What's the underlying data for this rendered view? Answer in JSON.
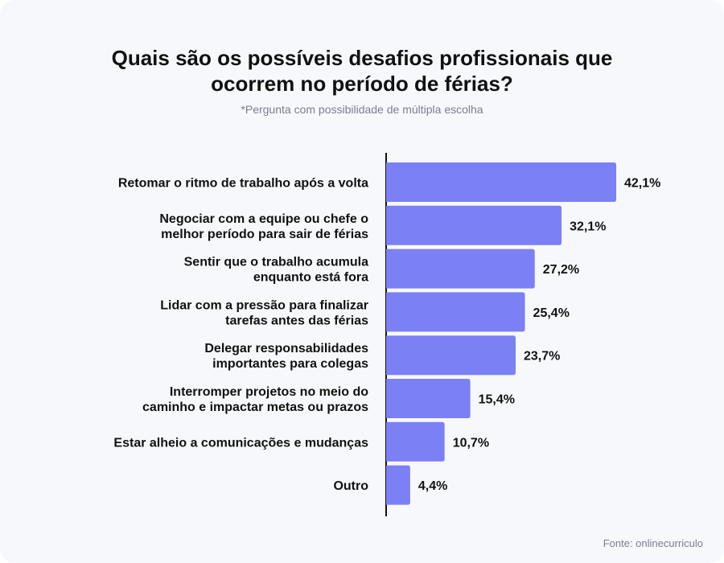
{
  "title_lines": [
    "Quais são os possíveis desafios profissionais que",
    "ocorrem no período de férias?"
  ],
  "subtitle": "*Pergunta com possibilidade de múltipla escolha",
  "source": "Fonte: onlinecurriculo",
  "colors": {
    "bar": "#7b80f5",
    "axis": "#111111",
    "background": "#f7f8fc"
  },
  "chart_data": {
    "type": "bar",
    "orientation": "horizontal",
    "categories": [
      [
        "Retomar o ritmo de trabalho após a volta"
      ],
      [
        "Negociar com a equipe ou chefe o",
        "melhor período para sair de férias"
      ],
      [
        "Sentir que o trabalho acumula",
        "enquanto está fora"
      ],
      [
        "Lidar com a pressão para finalizar",
        "tarefas antes das férias"
      ],
      [
        "Delegar responsabilidades",
        "importantes para colegas"
      ],
      [
        "Interromper projetos no meio do",
        "caminho e impactar metas ou prazos"
      ],
      [
        "Estar alheio a comunicações e mudanças"
      ],
      [
        "Outro"
      ]
    ],
    "values": [
      42.1,
      32.1,
      27.2,
      25.4,
      23.7,
      15.4,
      10.7,
      4.4
    ],
    "value_labels": [
      "42,1%",
      "32,1%",
      "27,2%",
      "25,4%",
      "23,7%",
      "15,4%",
      "10,7%",
      "4,4%"
    ],
    "xlim": [
      0,
      42.1
    ],
    "grid": false,
    "legend": "none"
  }
}
